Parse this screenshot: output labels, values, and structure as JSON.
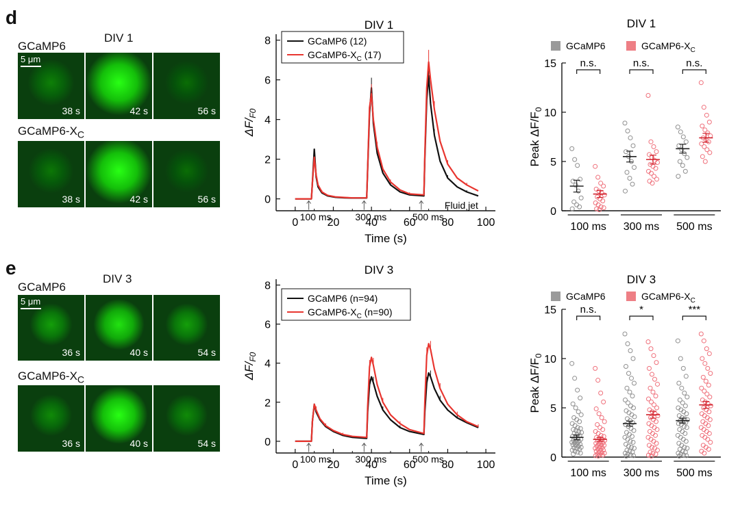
{
  "panel_d": {
    "letter": "d",
    "images": {
      "title": "DIV 1",
      "scale_bar": "5 μm",
      "rows": [
        {
          "label": "GCaMP6",
          "label_sub": "",
          "times": [
            "38 s",
            "42 s",
            "56 s"
          ],
          "brightness": [
            0.35,
            1.0,
            0.25
          ]
        },
        {
          "label": "GCaMP6-X",
          "label_sub": "C",
          "times": [
            "38 s",
            "42 s",
            "56 s"
          ],
          "brightness": [
            0.3,
            1.0,
            0.25
          ]
        }
      ]
    }
  },
  "panel_e": {
    "letter": "e",
    "images": {
      "title": "DIV 3",
      "scale_bar": "5 μm",
      "rows": [
        {
          "label": "GCaMP6",
          "label_sub": "",
          "times": [
            "36 s",
            "40 s",
            "54 s"
          ],
          "brightness": [
            0.5,
            0.85,
            0.5
          ]
        },
        {
          "label": "GCaMP6-X",
          "label_sub": "C",
          "times": [
            "36 s",
            "40 s",
            "54 s"
          ],
          "brightness": [
            0.4,
            1.0,
            0.4
          ]
        }
      ]
    }
  },
  "chart_data": [
    {
      "id": "trace-d",
      "type": "line",
      "title": "DIV 1",
      "xlabel": "Time (s)",
      "ylabel": "ΔF/F0",
      "xlim": [
        -10,
        105
      ],
      "ylim": [
        -0.6,
        8.3
      ],
      "xticks": [
        0,
        20,
        40,
        60,
        80,
        100
      ],
      "yticks": [
        0,
        2,
        4,
        6,
        8
      ],
      "legend": [
        {
          "name": "GCaMP6 (12)",
          "color": "#111111"
        },
        {
          "name": "GCaMP6-XC (17)",
          "color": "#e8352f"
        }
      ],
      "stimuli": [
        {
          "x": 10,
          "label": "100 ms"
        },
        {
          "x": 39,
          "label": "300 ms"
        },
        {
          "x": 69,
          "label": "500 ms"
        }
      ],
      "annotation": "Fluid jet",
      "series": [
        {
          "name": "GCaMP6",
          "color": "#111111",
          "x": [
            0,
            8.5,
            9,
            10,
            11,
            12,
            14,
            17,
            21,
            26,
            30,
            37.5,
            38,
            39,
            40,
            41,
            43,
            46,
            50,
            55,
            60,
            67.5,
            68,
            69,
            70,
            71,
            73,
            76,
            80,
            85,
            90,
            96
          ],
          "y": [
            0,
            0,
            0.8,
            2.5,
            1.1,
            0.6,
            0.3,
            0.15,
            0.08,
            0.05,
            0.04,
            0.04,
            1.5,
            4.3,
            5.6,
            3.8,
            2.3,
            1.3,
            0.7,
            0.35,
            0.2,
            0.15,
            2.0,
            5.0,
            6.2,
            4.8,
            3.2,
            1.9,
            1.05,
            0.6,
            0.35,
            0.15
          ]
        },
        {
          "name": "GCaMP6-XC",
          "color": "#e8352f",
          "x": [
            0,
            8.5,
            9,
            10,
            11,
            12,
            14,
            17,
            21,
            26,
            30,
            37.5,
            38,
            39,
            40,
            41,
            43,
            46,
            50,
            55,
            60,
            67.5,
            68,
            69,
            70,
            71,
            73,
            76,
            80,
            85,
            90,
            96
          ],
          "y": [
            0,
            0,
            0.8,
            2.1,
            1.2,
            0.7,
            0.35,
            0.18,
            0.1,
            0.07,
            0.05,
            0.05,
            1.6,
            4.6,
            5.3,
            4.0,
            2.6,
            1.5,
            0.85,
            0.45,
            0.25,
            0.2,
            2.2,
            5.6,
            6.9,
            6.0,
            4.5,
            2.9,
            1.75,
            1.05,
            0.7,
            0.4
          ]
        }
      ]
    },
    {
      "id": "trace-e",
      "type": "line",
      "title": "DIV 3",
      "xlabel": "Time (s)",
      "ylabel": "ΔF/F0",
      "xlim": [
        -10,
        105
      ],
      "ylim": [
        -0.6,
        8.3
      ],
      "xticks": [
        0,
        20,
        40,
        60,
        80,
        100
      ],
      "yticks": [
        0,
        2,
        4,
        6,
        8
      ],
      "legend": [
        {
          "name": "GCaMP6 (n=94)",
          "color": "#111111"
        },
        {
          "name": "GCaMP6-XC (n=90)",
          "color": "#e8352f"
        }
      ],
      "stimuli": [
        {
          "x": 10,
          "label": "100 ms"
        },
        {
          "x": 39,
          "label": "300 ms"
        },
        {
          "x": 69,
          "label": "500 ms"
        }
      ],
      "annotation": "",
      "series": [
        {
          "name": "GCaMP6",
          "color": "#111111",
          "x": [
            0,
            8.5,
            9,
            10,
            11,
            13,
            16,
            20,
            25,
            30,
            37.5,
            38,
            39,
            40,
            41,
            43,
            46,
            50,
            55,
            60,
            67.5,
            68,
            69,
            70,
            71,
            73,
            76,
            80,
            85,
            90,
            96
          ],
          "y": [
            0,
            0,
            1.0,
            1.9,
            1.5,
            1.1,
            0.75,
            0.5,
            0.3,
            0.2,
            0.15,
            1.5,
            2.9,
            3.3,
            3.0,
            2.3,
            1.6,
            1.1,
            0.7,
            0.5,
            0.35,
            1.5,
            3.0,
            3.5,
            3.3,
            2.7,
            2.1,
            1.6,
            1.2,
            0.95,
            0.7
          ]
        },
        {
          "name": "GCaMP6-XC",
          "color": "#e8352f",
          "x": [
            0,
            8.5,
            9,
            10,
            11,
            13,
            16,
            20,
            25,
            30,
            37.5,
            38,
            39,
            40,
            41,
            43,
            46,
            50,
            55,
            60,
            67.5,
            68,
            69,
            70,
            71,
            73,
            76,
            80,
            85,
            90,
            96
          ],
          "y": [
            0,
            0,
            1.0,
            1.9,
            1.6,
            1.15,
            0.8,
            0.55,
            0.35,
            0.25,
            0.2,
            1.8,
            3.8,
            4.3,
            3.9,
            2.9,
            2.0,
            1.35,
            0.9,
            0.6,
            0.4,
            2.0,
            4.4,
            5.0,
            4.7,
            3.7,
            2.7,
            1.9,
            1.35,
            1.0,
            0.75
          ]
        }
      ]
    },
    {
      "id": "scatter-d",
      "type": "scatter",
      "title": "DIV 1",
      "ylabel": "Peak ΔF/F0",
      "ylim": [
        0,
        15
      ],
      "yticks": [
        0,
        5,
        10,
        15
      ],
      "categories": [
        "100 ms",
        "300 ms",
        "500 ms"
      ],
      "legend": [
        {
          "name": "GCaMP6",
          "color": "#9a9a9a"
        },
        {
          "name": "GCaMP6-XC",
          "color": "#ee7f85"
        }
      ],
      "significance": [
        "n.s.",
        "n.s.",
        "n.s."
      ],
      "series": [
        {
          "name": "GCaMP6",
          "color": "#8e8e8e",
          "means": [
            2.5,
            5.5,
            6.3
          ],
          "sem": [
            0.6,
            0.55,
            0.45
          ],
          "points": [
            [
              6.3,
              5.2,
              4.6,
              3.2,
              3.0,
              2.6,
              2.0,
              1.3,
              0.9,
              0.6,
              0.4,
              0.2
            ],
            [
              8.9,
              8.1,
              7.4,
              6.6,
              6.0,
              5.5,
              5.0,
              4.4,
              3.9,
              3.3,
              2.7,
              2.0
            ],
            [
              8.5,
              8.0,
              7.5,
              7.0,
              6.6,
              6.2,
              5.8,
              5.4,
              5.0,
              4.6,
              4.0,
              3.5
            ]
          ]
        },
        {
          "name": "GCaMP6-XC",
          "color": "#ef6f7a",
          "means": [
            1.7,
            5.2,
            7.4
          ],
          "sem": [
            0.35,
            0.45,
            0.45
          ],
          "points": [
            [
              4.5,
              3.4,
              2.8,
              2.5,
              2.2,
              2.0,
              1.8,
              1.6,
              1.4,
              1.2,
              1.0,
              0.8,
              0.6,
              0.4,
              0.3,
              0.2,
              0.1
            ],
            [
              11.7,
              7.0,
              6.5,
              6.0,
              5.7,
              5.4,
              5.1,
              4.9,
              4.7,
              4.5,
              4.3,
              4.0,
              3.8,
              3.5,
              3.2,
              3.0,
              2.8
            ],
            [
              13.0,
              10.5,
              9.7,
              9.0,
              8.6,
              8.2,
              7.9,
              7.6,
              7.4,
              7.2,
              7.0,
              6.8,
              6.5,
              6.2,
              5.9,
              5.5,
              5.0
            ]
          ]
        }
      ]
    },
    {
      "id": "scatter-e",
      "type": "scatter",
      "title": "DIV 3",
      "ylabel": "Peak ΔF/F0",
      "ylim": [
        0,
        15
      ],
      "yticks": [
        0,
        5,
        10,
        15
      ],
      "categories": [
        "100 ms",
        "300 ms",
        "500 ms"
      ],
      "legend": [
        {
          "name": "GCaMP6",
          "color": "#9a9a9a"
        },
        {
          "name": "GCaMP6-XC",
          "color": "#ee7f85"
        }
      ],
      "significance": [
        "n.s.",
        "*",
        "***"
      ],
      "series": [
        {
          "name": "GCaMP6",
          "color": "#8e8e8e",
          "means": [
            2.0,
            3.4,
            3.7
          ],
          "sem": [
            0.25,
            0.25,
            0.25
          ],
          "points": [
            [
              9.5,
              8.0,
              6.8,
              6.0,
              5.4,
              5.0,
              4.6,
              4.3,
              4.0,
              3.8,
              3.6,
              3.4,
              3.2,
              3.0,
              2.9,
              2.8,
              2.7,
              2.6,
              2.5,
              2.4,
              2.3,
              2.2,
              2.1,
              2.0,
              1.9,
              1.8,
              1.7,
              1.65,
              1.6,
              1.5,
              1.45,
              1.4,
              1.3,
              1.25,
              1.2,
              1.1,
              1.0,
              0.95,
              0.9,
              0.8,
              0.7,
              0.6,
              0.5,
              0.4,
              0.3
            ],
            [
              12.5,
              11.5,
              10.8,
              10.0,
              9.2,
              8.5,
              8.0,
              7.5,
              7.0,
              6.6,
              6.2,
              5.8,
              5.5,
              5.2,
              5.0,
              4.7,
              4.5,
              4.3,
              4.1,
              3.9,
              3.7,
              3.5,
              3.3,
              3.1,
              2.9,
              2.7,
              2.5,
              2.3,
              2.1,
              2.0,
              1.8,
              1.6,
              1.5,
              1.3,
              1.1,
              1.0,
              0.9,
              0.7,
              0.6,
              0.5,
              0.4,
              0.3,
              0.2,
              0.15,
              0.1
            ],
            [
              11.8,
              10.0,
              9.0,
              8.2,
              7.5,
              7.0,
              6.5,
              6.1,
              5.8,
              5.5,
              5.2,
              5.0,
              4.8,
              4.6,
              4.4,
              4.2,
              4.0,
              3.9,
              3.8,
              3.7,
              3.6,
              3.5,
              3.4,
              3.3,
              3.1,
              3.0,
              2.8,
              2.6,
              2.4,
              2.2,
              2.0,
              1.8,
              1.6,
              1.4,
              1.2,
              1.0,
              0.9,
              0.8,
              0.6,
              0.5,
              0.4,
              0.3,
              0.2,
              0.15,
              0.1
            ]
          ]
        },
        {
          "name": "GCaMP6-XC",
          "color": "#ef6f7a",
          "means": [
            1.8,
            4.3,
            5.3
          ],
          "sem": [
            0.2,
            0.35,
            0.35
          ],
          "points": [
            [
              9.0,
              7.8,
              6.5,
              5.6,
              4.9,
              4.4,
              4.0,
              3.6,
              3.3,
              3.0,
              2.8,
              2.6,
              2.4,
              2.2,
              2.1,
              2.0,
              1.9,
              1.8,
              1.7,
              1.6,
              1.5,
              1.45,
              1.4,
              1.3,
              1.25,
              1.2,
              1.1,
              1.0,
              0.95,
              0.9,
              0.8,
              0.75,
              0.7,
              0.6,
              0.5,
              0.45,
              0.4,
              0.3,
              0.25,
              0.2,
              0.15,
              0.1
            ],
            [
              11.7,
              11.0,
              10.3,
              9.6,
              9.0,
              8.4,
              7.9,
              7.4,
              7.0,
              6.6,
              6.2,
              5.9,
              5.6,
              5.3,
              5.0,
              4.8,
              4.6,
              4.4,
              4.2,
              4.0,
              3.8,
              3.6,
              3.4,
              3.2,
              3.0,
              2.8,
              2.6,
              2.4,
              2.2,
              2.0,
              1.8,
              1.6,
              1.4,
              1.2,
              1.0,
              0.9,
              0.7,
              0.5,
              0.4,
              0.3,
              0.2,
              0.1
            ],
            [
              12.5,
              11.8,
              11.0,
              10.5,
              10.0,
              9.5,
              9.0,
              8.5,
              8.1,
              7.7,
              7.3,
              7.0,
              6.7,
              6.4,
              6.1,
              5.8,
              5.6,
              5.4,
              5.2,
              5.0,
              4.8,
              4.6,
              4.4,
              4.2,
              4.0,
              3.8,
              3.6,
              3.4,
              3.2,
              3.0,
              2.8,
              2.6,
              2.4,
              2.2,
              2.0,
              1.8,
              1.5,
              1.2,
              1.0,
              0.8,
              0.6,
              0.4
            ]
          ]
        }
      ]
    }
  ]
}
